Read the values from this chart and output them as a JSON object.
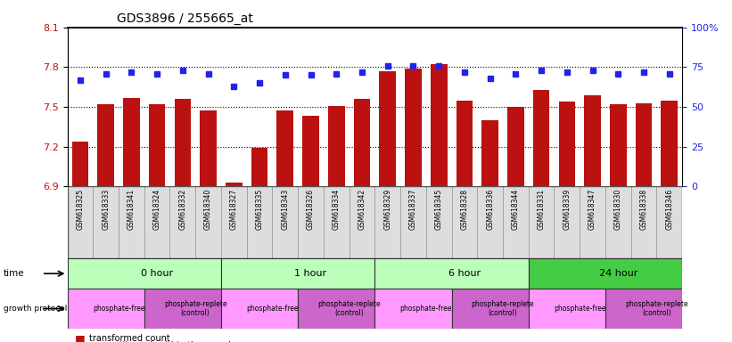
{
  "title": "GDS3896 / 255665_at",
  "samples": [
    "GSM618325",
    "GSM618333",
    "GSM618341",
    "GSM618324",
    "GSM618332",
    "GSM618340",
    "GSM618327",
    "GSM618335",
    "GSM618343",
    "GSM618326",
    "GSM618334",
    "GSM618342",
    "GSM618329",
    "GSM618337",
    "GSM618345",
    "GSM618328",
    "GSM618336",
    "GSM618344",
    "GSM618331",
    "GSM618339",
    "GSM618347",
    "GSM618330",
    "GSM618338",
    "GSM618346"
  ],
  "bar_values": [
    7.24,
    7.52,
    7.57,
    7.52,
    7.56,
    7.47,
    6.93,
    7.19,
    7.47,
    7.43,
    7.51,
    7.56,
    7.77,
    7.79,
    7.82,
    7.55,
    7.4,
    7.5,
    7.63,
    7.54,
    7.59,
    7.52,
    7.53,
    7.55
  ],
  "blue_values": [
    67,
    71,
    72,
    71,
    73,
    71,
    63,
    65,
    70,
    70,
    71,
    72,
    76,
    76,
    76,
    72,
    68,
    71,
    73,
    72,
    73,
    71,
    72,
    71
  ],
  "ylim_left": [
    6.9,
    8.1
  ],
  "ylim_right": [
    0,
    100
  ],
  "yticks_left": [
    6.9,
    7.2,
    7.5,
    7.8,
    8.1
  ],
  "yticks_right": [
    0,
    25,
    50,
    75,
    100
  ],
  "ytick_labels_right": [
    "0",
    "25",
    "50",
    "75",
    "100%"
  ],
  "bar_color": "#BB1111",
  "blue_color": "#2222EE",
  "time_groups": [
    {
      "label": "0 hour",
      "start": 0,
      "end": 6,
      "color": "#BBFFBB"
    },
    {
      "label": "1 hour",
      "start": 6,
      "end": 12,
      "color": "#BBFFBB"
    },
    {
      "label": "6 hour",
      "start": 12,
      "end": 18,
      "color": "#BBFFBB"
    },
    {
      "label": "24 hour",
      "start": 18,
      "end": 24,
      "color": "#44CC44"
    }
  ],
  "protocol_groups": [
    {
      "label": "phosphate-free",
      "start": 0,
      "end": 3,
      "color": "#FF99FF"
    },
    {
      "label": "phosphate-replete\n(control)",
      "start": 3,
      "end": 6,
      "color": "#CC66CC"
    },
    {
      "label": "phosphate-free",
      "start": 6,
      "end": 9,
      "color": "#FF99FF"
    },
    {
      "label": "phosphate-replete\n(control)",
      "start": 9,
      "end": 12,
      "color": "#CC66CC"
    },
    {
      "label": "phosphate-free",
      "start": 12,
      "end": 15,
      "color": "#FF99FF"
    },
    {
      "label": "phosphate-replete\n(control)",
      "start": 15,
      "end": 18,
      "color": "#CC66CC"
    },
    {
      "label": "phosphate-free",
      "start": 18,
      "end": 21,
      "color": "#FF99FF"
    },
    {
      "label": "phosphate-replete\n(control)",
      "start": 21,
      "end": 24,
      "color": "#CC66CC"
    }
  ],
  "label_bg_color": "#DDDDDD",
  "label_border_color": "#888888"
}
